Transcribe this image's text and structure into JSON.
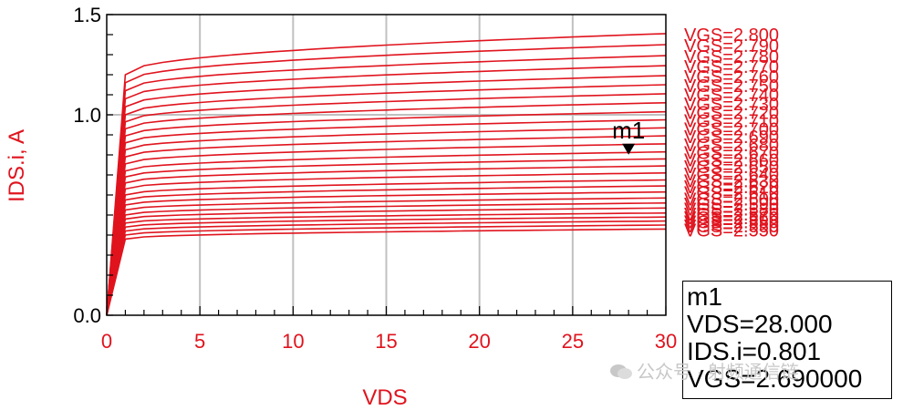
{
  "chart_data": {
    "type": "line",
    "xlabel": "VDS",
    "ylabel": "IDS.i, A",
    "xlim": [
      0,
      30
    ],
    "ylim": [
      0,
      1.5
    ],
    "x_ticks": [
      "0",
      "5",
      "10",
      "15",
      "20",
      "25",
      "30"
    ],
    "y_ticks": [
      "0.0",
      "1.0",
      "1.5"
    ],
    "y_tick_values": [
      0,
      1.0,
      1.5
    ],
    "grid": true,
    "colors": {
      "series": "#e0141e",
      "axis_text": "#e0141e",
      "marker": "#000000",
      "frame": "#000000",
      "grid": "#c0c0c0"
    },
    "knee_vds": 1.0,
    "series": [
      {
        "name": "VGS=2.800",
        "values_at": {
          "vds_1": 1.2,
          "vds_30": 1.405
        }
      },
      {
        "name": "VGS=2.790",
        "values_at": {
          "vds_1": 1.16,
          "vds_30": 1.35
        }
      },
      {
        "name": "VGS=2.780",
        "values_at": {
          "vds_1": 1.12,
          "vds_30": 1.295
        }
      },
      {
        "name": "VGS=2.770",
        "values_at": {
          "vds_1": 1.08,
          "vds_30": 1.245
        }
      },
      {
        "name": "VGS=2.760",
        "values_at": {
          "vds_1": 1.04,
          "vds_30": 1.195
        }
      },
      {
        "name": "VGS=2.750",
        "values_at": {
          "vds_1": 1.0,
          "vds_30": 1.15
        }
      },
      {
        "name": "VGS=2.740",
        "values_at": {
          "vds_1": 0.965,
          "vds_30": 1.105
        }
      },
      {
        "name": "VGS=2.730",
        "values_at": {
          "vds_1": 0.93,
          "vds_30": 1.06
        }
      },
      {
        "name": "VGS=2.720",
        "values_at": {
          "vds_1": 0.895,
          "vds_30": 1.015
        }
      },
      {
        "name": "VGS=2.710",
        "values_at": {
          "vds_1": 0.86,
          "vds_30": 0.975
        }
      },
      {
        "name": "VGS=2.700",
        "values_at": {
          "vds_1": 0.825,
          "vds_30": 0.935
        }
      },
      {
        "name": "VGS=2.690",
        "values_at": {
          "vds_1": 0.79,
          "vds_30": 0.895
        }
      },
      {
        "name": "VGS=2.680",
        "values_at": {
          "vds_1": 0.755,
          "vds_30": 0.855
        }
      },
      {
        "name": "VGS=2.670",
        "values_at": {
          "vds_1": 0.72,
          "vds_30": 0.815
        }
      },
      {
        "name": "VGS=2.660",
        "values_at": {
          "vds_1": 0.69,
          "vds_30": 0.78
        }
      },
      {
        "name": "VGS=2.650",
        "values_at": {
          "vds_1": 0.66,
          "vds_30": 0.745
        }
      },
      {
        "name": "VGS=2.640",
        "values_at": {
          "vds_1": 0.63,
          "vds_30": 0.71
        }
      },
      {
        "name": "VGS=2.630",
        "values_at": {
          "vds_1": 0.6,
          "vds_30": 0.675
        }
      },
      {
        "name": "VGS=2.620",
        "values_at": {
          "vds_1": 0.575,
          "vds_30": 0.645
        }
      },
      {
        "name": "VGS=2.610",
        "values_at": {
          "vds_1": 0.55,
          "vds_30": 0.615
        }
      },
      {
        "name": "VGS=2.600",
        "values_at": {
          "vds_1": 0.525,
          "vds_30": 0.585
        }
      },
      {
        "name": "VGS=2.590",
        "values_at": {
          "vds_1": 0.5,
          "vds_30": 0.56
        }
      },
      {
        "name": "VGS=2.580",
        "values_at": {
          "vds_1": 0.48,
          "vds_30": 0.535
        }
      },
      {
        "name": "VGS=2.570",
        "values_at": {
          "vds_1": 0.46,
          "vds_30": 0.51
        }
      },
      {
        "name": "VGS=2.560",
        "values_at": {
          "vds_1": 0.44,
          "vds_30": 0.49
        }
      },
      {
        "name": "VGS=2.550",
        "values_at": {
          "vds_1": 0.42,
          "vds_30": 0.47
        }
      },
      {
        "name": "VGS=2.550",
        "values_at": {
          "vds_1": 0.4,
          "vds_30": 0.45
        }
      },
      {
        "name": "VGS=2.550",
        "values_at": {
          "vds_1": 0.38,
          "vds_30": 0.43
        }
      }
    ],
    "marker": {
      "name": "m1",
      "vds": 28.0,
      "ids": 0.801
    }
  },
  "marker_readout": {
    "line1": "m1",
    "line2": "VDS=28.000",
    "line3": "IDS.i=0.801",
    "line4": "VGS=2.690000"
  },
  "watermark": {
    "text": "公众号 · 射频通信链"
  }
}
